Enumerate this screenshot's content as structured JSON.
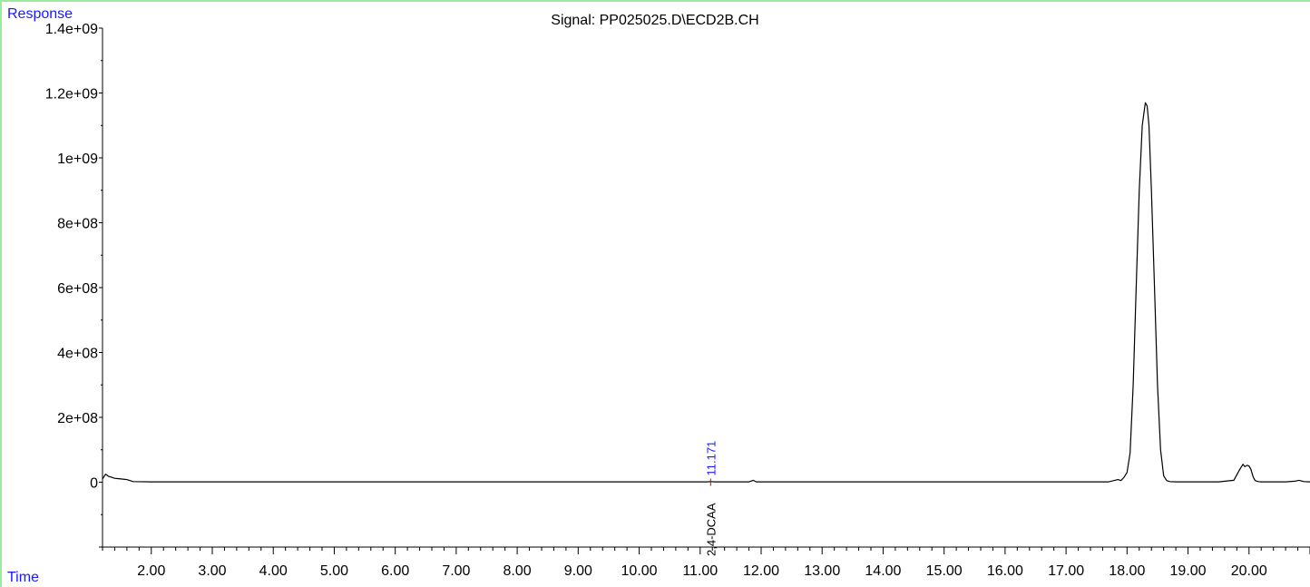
{
  "colors": {
    "axis": "#000000",
    "signal": "#000000",
    "accent": "#1a1aff",
    "frame": "#9fe89f",
    "marker": "#cc0000"
  },
  "axes": {
    "y_name": "Response",
    "x_name": "Time"
  },
  "chart_data": {
    "type": "line",
    "title": "Signal: PP025025.D\\ECD2B.CH",
    "xlabel": "Time",
    "ylabel": "Response",
    "xlim": [
      1.2,
      21.0
    ],
    "ylim": [
      -200000000,
      1400000000
    ],
    "x_ticks": [
      2,
      3,
      4,
      5,
      6,
      7,
      8,
      9,
      10,
      11,
      12,
      13,
      14,
      15,
      16,
      17,
      18,
      19,
      20
    ],
    "x_tick_labels": [
      "2.00",
      "3.00",
      "4.00",
      "5.00",
      "6.00",
      "7.00",
      "8.00",
      "9.00",
      "10.00",
      "11.00",
      "12.00",
      "13.00",
      "14.00",
      "15.00",
      "16.00",
      "17.00",
      "18.00",
      "19.00",
      "20.00"
    ],
    "y_ticks": [
      0,
      200000000,
      400000000,
      600000000,
      800000000,
      1000000000,
      1200000000,
      1400000000
    ],
    "y_tick_labels": [
      "0",
      "2e+08",
      "4e+08",
      "6e+08",
      "8e+08",
      "1e+09",
      "1.2e+09",
      "1.4e+09"
    ],
    "series": [
      {
        "x": [
          1.2,
          1.25,
          1.3,
          1.35,
          1.4,
          1.5,
          1.6,
          1.7,
          2.0,
          3.0,
          4.0,
          5.0,
          6.0,
          7.0,
          8.0,
          9.0,
          10.0,
          11.0,
          11.1,
          11.171,
          11.25,
          11.4,
          11.8,
          11.87,
          11.92,
          12.0,
          13.0,
          14.0,
          15.0,
          16.0,
          17.0,
          17.7,
          17.85,
          17.9,
          17.95,
          18.0,
          18.05,
          18.1,
          18.15,
          18.2,
          18.25,
          18.3,
          18.33,
          18.36,
          18.4,
          18.45,
          18.5,
          18.55,
          18.6,
          18.65,
          18.7,
          18.8,
          19.0,
          19.5,
          19.75,
          19.85,
          19.9,
          19.93,
          19.97,
          20.0,
          20.03,
          20.07,
          20.1,
          20.15,
          20.2,
          20.4,
          20.6,
          20.75,
          20.82,
          20.9,
          21.0
        ],
        "y": [
          10000000,
          25000000,
          18000000,
          15000000,
          12000000,
          10000000,
          8000000,
          2000000,
          1000000,
          1000000,
          1000000,
          1000000,
          1000000,
          1000000,
          1000000,
          1000000,
          1000000,
          1000000,
          1000000,
          2000000,
          1000000,
          1000000,
          1000000,
          6000000,
          1000000,
          1000000,
          1000000,
          1000000,
          1000000,
          1000000,
          1000000,
          1000000,
          8000000,
          5000000,
          15000000,
          30000000,
          90000000,
          300000000,
          600000000,
          900000000,
          1100000000,
          1170000000,
          1160000000,
          1100000000,
          900000000,
          600000000,
          300000000,
          100000000,
          20000000,
          5000000,
          2000000,
          1000000,
          1000000,
          1000000,
          6000000,
          40000000,
          55000000,
          48000000,
          52000000,
          50000000,
          40000000,
          15000000,
          5000000,
          2000000,
          1000000,
          1000000,
          1000000,
          3000000,
          6000000,
          2000000,
          1000000
        ]
      }
    ],
    "annotations": [
      {
        "x": 11.171,
        "compound": "2,4-DCAA",
        "rt": "11.171"
      }
    ]
  }
}
